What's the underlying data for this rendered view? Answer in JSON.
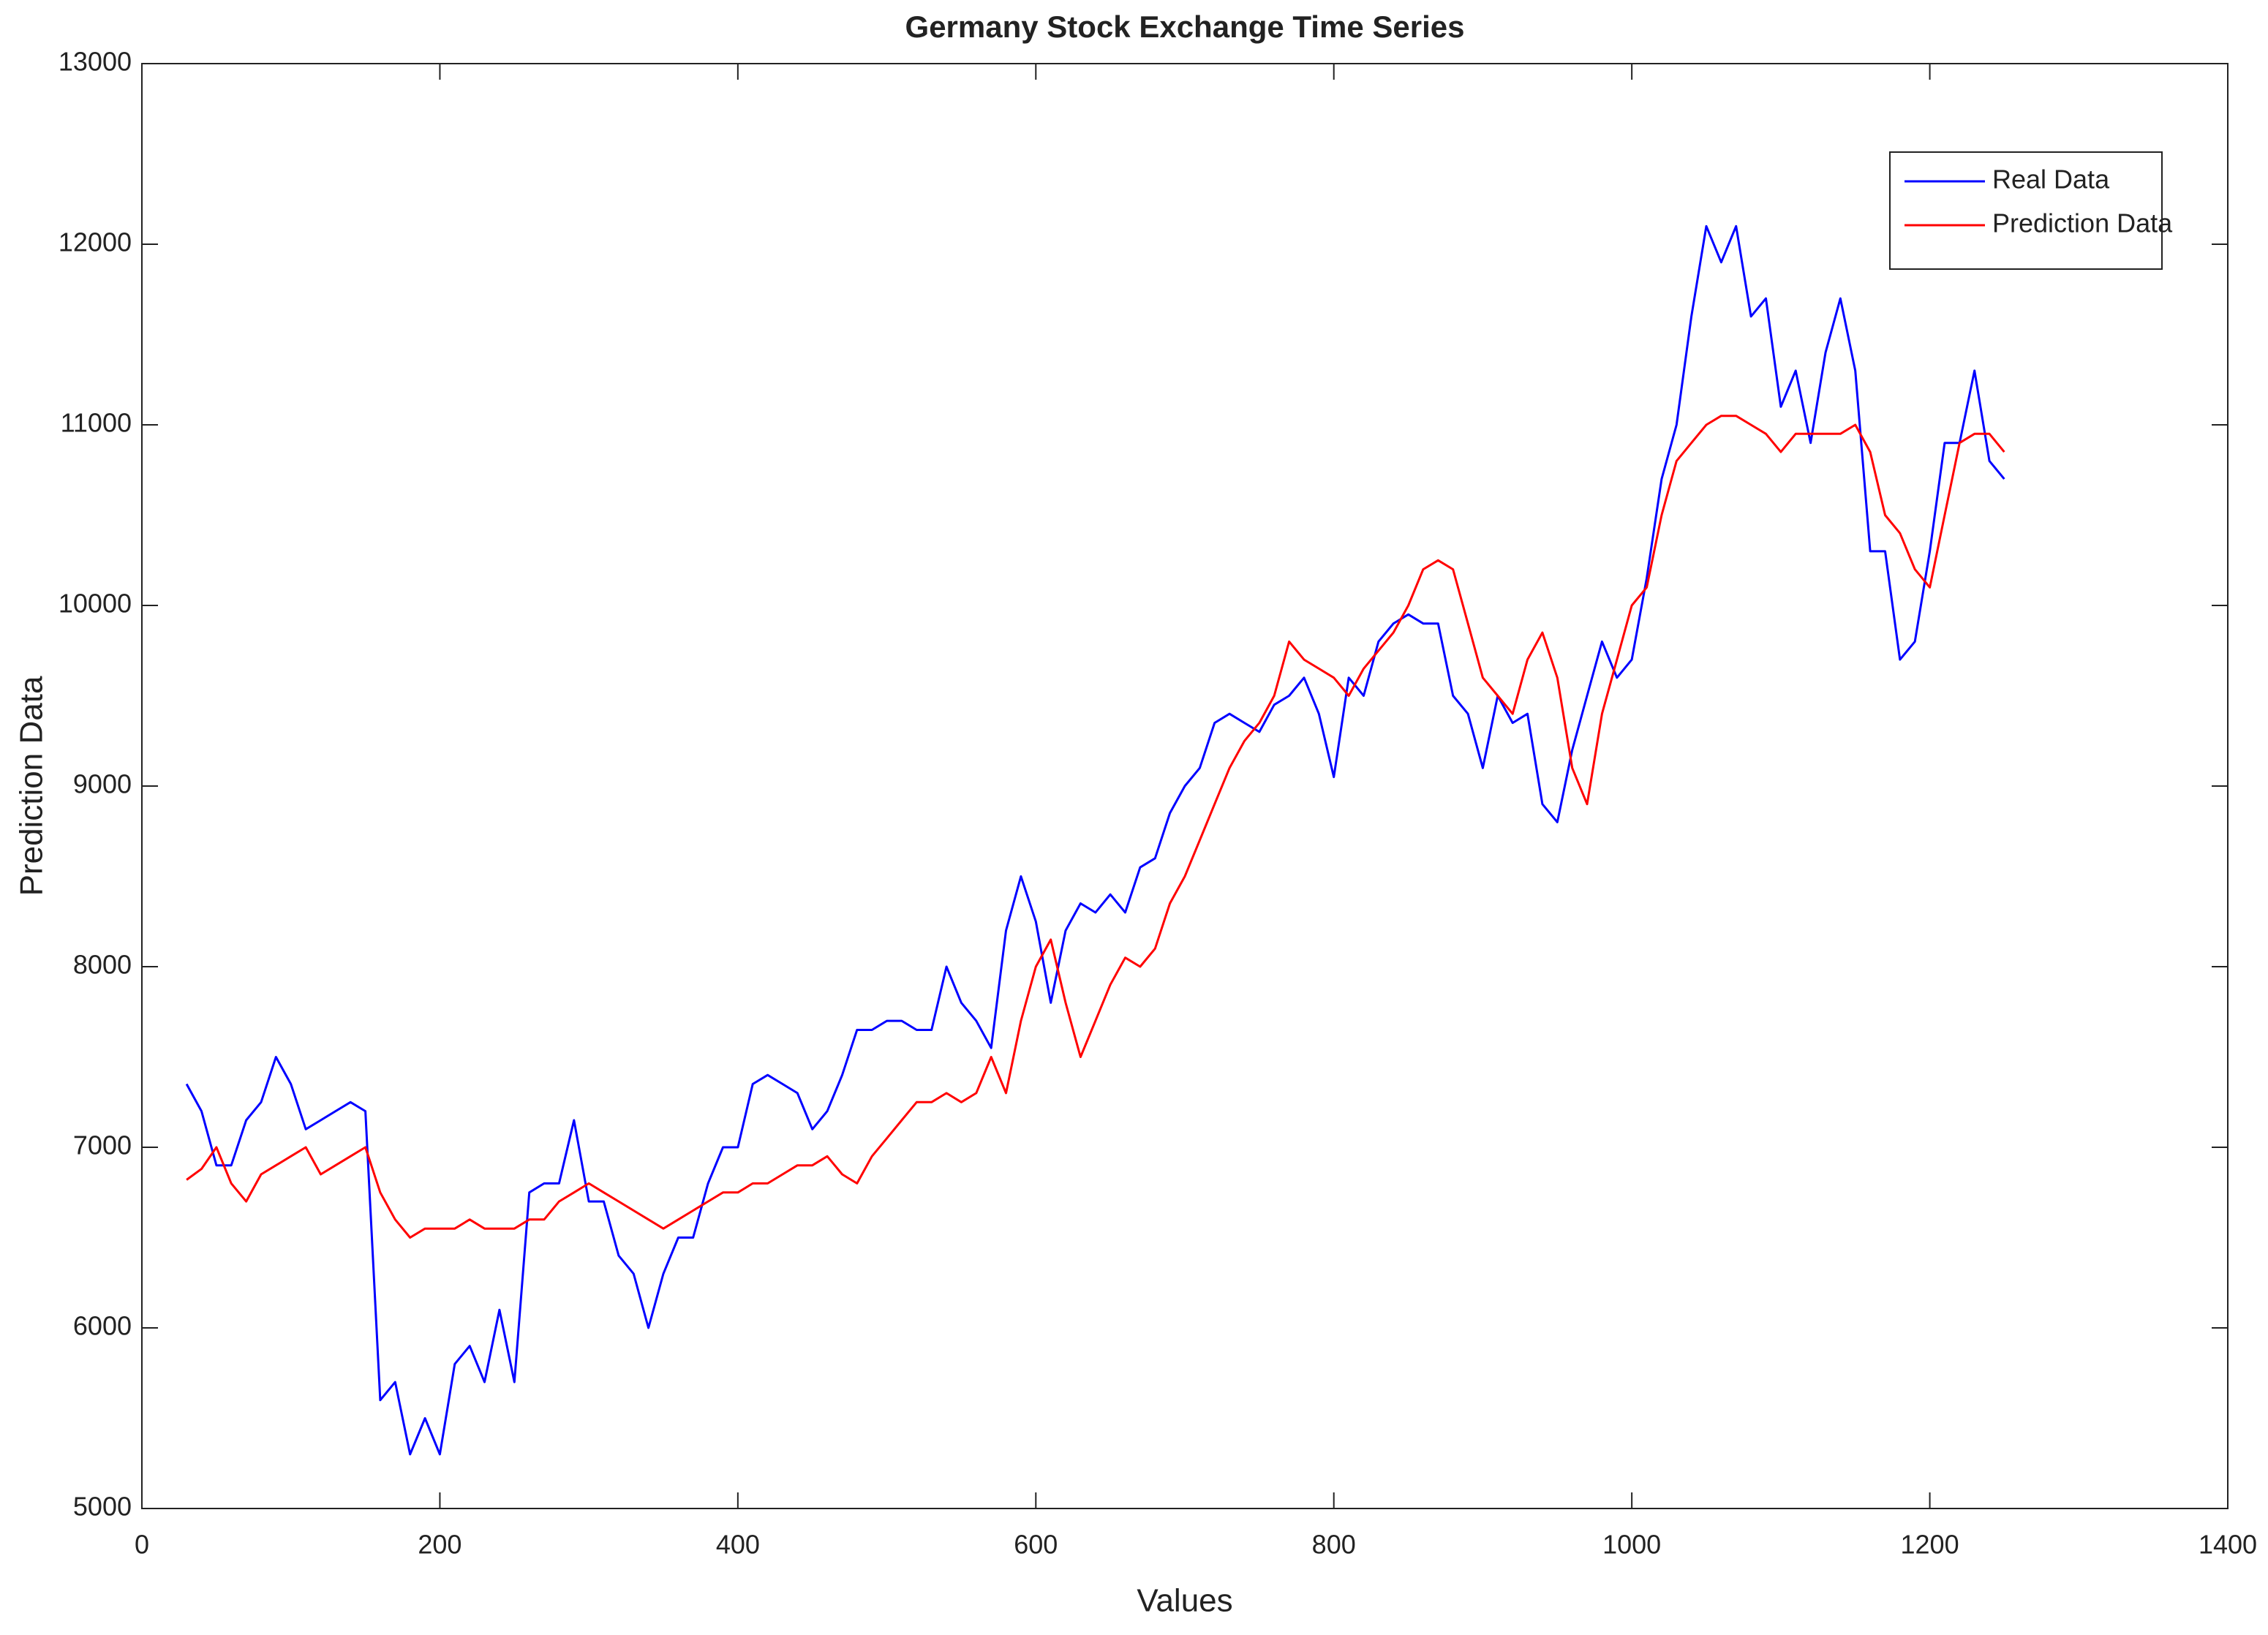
{
  "chart_data": {
    "type": "line",
    "title": "Germany Stock Exchange Time Series",
    "x_label": "Values",
    "y_label": "Prediction Data",
    "x": [
      30,
      40,
      50,
      60,
      70,
      80,
      90,
      100,
      110,
      120,
      130,
      140,
      150,
      160,
      170,
      180,
      190,
      200,
      210,
      220,
      230,
      240,
      250,
      260,
      270,
      280,
      290,
      300,
      310,
      320,
      330,
      340,
      350,
      360,
      370,
      380,
      390,
      400,
      410,
      420,
      430,
      440,
      450,
      460,
      470,
      480,
      490,
      500,
      510,
      520,
      530,
      540,
      550,
      560,
      570,
      580,
      590,
      600,
      610,
      620,
      630,
      640,
      650,
      660,
      670,
      680,
      690,
      700,
      710,
      720,
      730,
      740,
      750,
      760,
      770,
      780,
      790,
      800,
      810,
      820,
      830,
      840,
      850,
      860,
      870,
      880,
      890,
      900,
      910,
      920,
      930,
      940,
      950,
      960,
      970,
      980,
      990,
      1000,
      1010,
      1020,
      1030,
      1040,
      1050,
      1060,
      1070,
      1080,
      1090,
      1100,
      1110,
      1120,
      1130,
      1140,
      1150,
      1160,
      1170,
      1180,
      1190,
      1200,
      1210,
      1220,
      1230,
      1240,
      1250
    ],
    "series": [
      {
        "name": "Real Data",
        "color": "#0000ff",
        "values": [
          7350,
          7200,
          6900,
          6900,
          7150,
          7250,
          7500,
          7350,
          7100,
          7150,
          7200,
          7250,
          7200,
          5600,
          5700,
          5300,
          5500,
          5300,
          5800,
          5900,
          5700,
          6100,
          5700,
          6750,
          6800,
          6800,
          7150,
          6700,
          6700,
          6400,
          6300,
          6000,
          6300,
          6500,
          6500,
          6800,
          7000,
          7000,
          7350,
          7400,
          7350,
          7300,
          7100,
          7200,
          7400,
          7650,
          7650,
          7700,
          7700,
          7650,
          7650,
          8000,
          7800,
          7700,
          7550,
          8200,
          8500,
          8250,
          7800,
          8200,
          8350,
          8300,
          8400,
          8300,
          8550,
          8600,
          8850,
          9000,
          9100,
          9350,
          9400,
          9350,
          9300,
          9450,
          9500,
          9600,
          9400,
          9050,
          9600,
          9500,
          9800,
          9900,
          9950,
          9900,
          9900,
          9500,
          9400,
          9100,
          9500,
          9350,
          9400,
          8900,
          8800,
          9200,
          9500,
          9800,
          9600,
          9700,
          10150,
          10700,
          11000,
          11600,
          12100,
          11900,
          12100,
          11600,
          11700,
          11100,
          11300,
          10900,
          11400,
          11700,
          11300,
          10300,
          10300,
          9700,
          9800,
          10300,
          10900,
          10900,
          11300,
          10800,
          10700
        ]
      },
      {
        "name": "Prediction Data",
        "color": "#ff0000",
        "values": [
          6820,
          6880,
          7000,
          6800,
          6700,
          6850,
          6900,
          6950,
          7000,
          6850,
          6900,
          6950,
          7000,
          6750,
          6600,
          6500,
          6550,
          6550,
          6550,
          6600,
          6550,
          6550,
          6550,
          6600,
          6600,
          6700,
          6750,
          6800,
          6750,
          6700,
          6650,
          6600,
          6550,
          6600,
          6650,
          6700,
          6750,
          6750,
          6800,
          6800,
          6850,
          6900,
          6900,
          6950,
          6850,
          6800,
          6950,
          7050,
          7150,
          7250,
          7250,
          7300,
          7250,
          7300,
          7500,
          7300,
          7700,
          8000,
          8150,
          7800,
          7500,
          7700,
          7900,
          8050,
          8000,
          8100,
          8350,
          8500,
          8700,
          8900,
          9100,
          9250,
          9350,
          9500,
          9800,
          9700,
          9650,
          9600,
          9500,
          9650,
          9750,
          9850,
          10000,
          10200,
          10250,
          10200,
          9900,
          9600,
          9500,
          9400,
          9700,
          9850,
          9600,
          9100,
          8900,
          9400,
          9700,
          10000,
          10100,
          10500,
          10800,
          10900,
          11000,
          11050,
          11050,
          11000,
          10950,
          10850,
          10950,
          10950,
          10950,
          10950,
          11000,
          10850,
          10500,
          10400,
          10200,
          10100,
          10500,
          10900,
          10950,
          10950,
          10850
        ]
      }
    ],
    "xlim": [
      0,
      1400
    ],
    "xticks": [
      0,
      200,
      400,
      600,
      800,
      1000,
      1200,
      1400
    ],
    "ylim": [
      5000,
      13000
    ],
    "yticks": [
      5000,
      6000,
      7000,
      8000,
      9000,
      10000,
      11000,
      12000,
      13000
    ],
    "grid": false,
    "legend": "northeast"
  }
}
